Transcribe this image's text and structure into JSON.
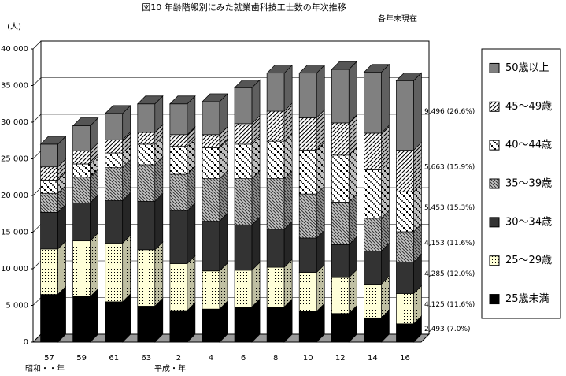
{
  "chart_data": {
    "type": "bar",
    "stacked": true,
    "title": "図10 年齢階級別にみた就業歯科技工士数の年次推移",
    "subtitle": "各年末現在",
    "y_label": "(人)",
    "x_labels": [
      "昭和・・年",
      "平成・年"
    ],
    "categories": [
      "57",
      "59",
      "61",
      "63",
      "2",
      "4",
      "6",
      "8",
      "10",
      "12",
      "14",
      "16"
    ],
    "ylim": [
      0,
      40000
    ],
    "yticks": [
      {
        "value": 0,
        "label": "0"
      },
      {
        "value": 5000,
        "label": "5 000"
      },
      {
        "value": 10000,
        "label": "10 000"
      },
      {
        "value": 15000,
        "label": "15 000"
      },
      {
        "value": 20000,
        "label": "20 000"
      },
      {
        "value": 25000,
        "label": "25 000"
      },
      {
        "value": 30000,
        "label": "30 000"
      },
      {
        "value": 35000,
        "label": "35 000"
      },
      {
        "value": 40000,
        "label": "40 000"
      }
    ],
    "grid": true,
    "series": [
      {
        "name": "25歳未満",
        "color": "#000000",
        "values": [
          6500,
          6200,
          5500,
          4900,
          4300,
          4500,
          4800,
          4800,
          4200,
          3900,
          3300,
          2493
        ],
        "value_labels": [
          null,
          null,
          null,
          null,
          null,
          null,
          null,
          null,
          null,
          null,
          null,
          "2,493 (7.0%)"
        ]
      },
      {
        "name": "25～29歳",
        "color": "#ffffd8",
        "values": [
          6200,
          7600,
          8000,
          7700,
          6400,
          5200,
          5000,
          5400,
          5300,
          4900,
          4600,
          4125
        ],
        "value_labels": [
          null,
          null,
          null,
          null,
          null,
          null,
          null,
          null,
          null,
          null,
          null,
          "4,125 (11.6%)"
        ]
      },
      {
        "name": "30～34歳",
        "color": "#333333",
        "values": [
          5000,
          5200,
          5800,
          6600,
          7200,
          6800,
          6200,
          5200,
          4700,
          4500,
          4500,
          4285
        ],
        "value_labels": [
          null,
          null,
          null,
          null,
          null,
          null,
          null,
          null,
          null,
          null,
          null,
          "4,285 (12.0%)"
        ]
      },
      {
        "name": "35～39歳",
        "color": "#c8c8c8",
        "values": [
          2600,
          3500,
          4500,
          5000,
          5000,
          5800,
          6300,
          6900,
          6000,
          5800,
          4500,
          4153
        ],
        "value_labels": [
          null,
          null,
          null,
          null,
          null,
          null,
          null,
          null,
          null,
          null,
          null,
          "4,153 (11.6%)"
        ]
      },
      {
        "name": "40～44歳",
        "color": "#ffffff",
        "values": [
          1800,
          1800,
          2000,
          2800,
          3800,
          4200,
          4700,
          5100,
          6000,
          6400,
          6600,
          5453
        ],
        "value_labels": [
          null,
          null,
          null,
          null,
          null,
          null,
          null,
          null,
          null,
          null,
          null,
          "5,453 (15.3%)"
        ]
      },
      {
        "name": "45～49歳",
        "color": "#ffffff",
        "values": [
          1800,
          1800,
          1800,
          1600,
          1600,
          1800,
          2800,
          4100,
          4400,
          4400,
          5000,
          5663
        ],
        "value_labels": [
          null,
          null,
          null,
          null,
          null,
          null,
          null,
          null,
          null,
          null,
          null,
          "5,663 (15.9%)"
        ]
      },
      {
        "name": "50歳以上",
        "color": "#808080",
        "values": [
          3100,
          3400,
          3600,
          3900,
          4200,
          4500,
          4900,
          5200,
          6100,
          7300,
          8300,
          9496
        ],
        "value_labels": [
          null,
          null,
          null,
          null,
          null,
          null,
          null,
          null,
          null,
          null,
          null,
          "9,496 (26.6%)"
        ]
      }
    ]
  }
}
